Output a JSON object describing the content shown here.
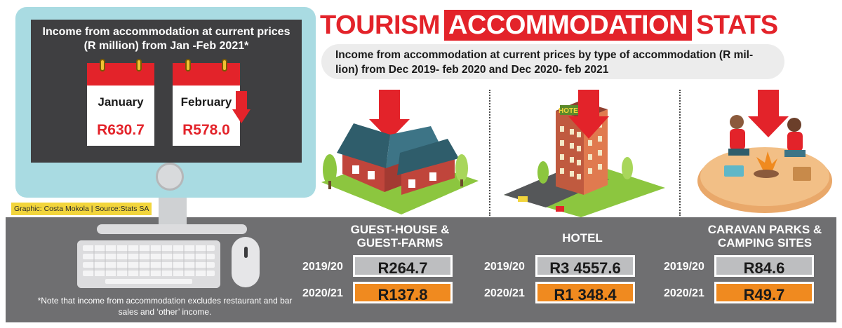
{
  "title": {
    "part1": "TOURISM",
    "part2": "ACCOMMODATION",
    "part3": "STATS"
  },
  "subtitle": "Income from accommodation at current prices by type of accommodation (R mil- lion) from Dec 2019- feb 2020 and Dec 2020- feb 2021",
  "monitor": {
    "heading": "Income from accommodation at current prices (R million) from Jan -Feb 2021*",
    "months": [
      {
        "label": "January",
        "value": "R630.7"
      },
      {
        "label": "February",
        "value": "R578.0"
      }
    ]
  },
  "credit": "Graphic: Costa Mokola | Source:Stats SA",
  "note": "*Note that income from accommodation excludes restaurant and bar sales and ‘other’ income.",
  "categories": [
    {
      "name": "GUEST-HOUSE & GUEST-FARMS",
      "y1_label": "2019/20",
      "y1_value": "R264.7",
      "y2_label": "2020/21",
      "y2_value": "R137.8"
    },
    {
      "name": "HOTEL",
      "y1_label": "2019/20",
      "y1_value": "R3 4557.6",
      "y2_label": "2020/21",
      "y2_value": "R1 348.4"
    },
    {
      "name": "CARAVAN PARKS & CAMPING SITES",
      "y1_label": "2019/20",
      "y1_value": "R84.6",
      "y2_label": "2020/21",
      "y2_value": "R49.7"
    }
  ],
  "hotel_sign": "HOTEL",
  "colors": {
    "accent_red": "#e3232a",
    "band_grey": "#6f6f71",
    "value_grey": "#bdbec0",
    "value_orange": "#f08a1f",
    "monitor_blue": "#a9dbe2",
    "credit_yellow": "#f2d53c"
  },
  "icons": [
    "calendar-icon",
    "down-arrow-icon",
    "house-illustration",
    "hotel-illustration",
    "campsite-illustration",
    "keyboard-icon",
    "mouse-icon"
  ]
}
